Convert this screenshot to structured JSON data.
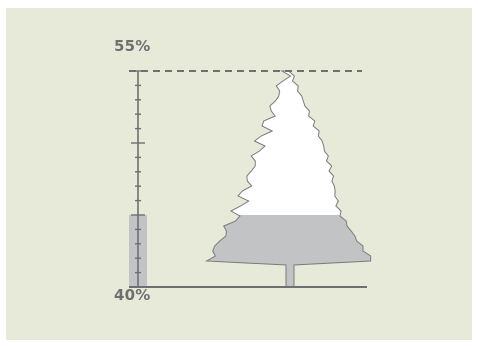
{
  "chart_data": {
    "type": "bar",
    "title": "",
    "xlabel": "",
    "ylabel": "",
    "ylim": [
      40,
      55
    ],
    "y_axis_label_max": "55%",
    "y_axis_label_min": "40%",
    "values": [
      45
    ],
    "reference_line": 55,
    "tree_fill_level": 45,
    "grid": false,
    "legend": "none"
  },
  "colors": {
    "background": "#e8ead9",
    "fill": "#c2c3c5",
    "tree_empty": "#ffffff",
    "axis": "#6f6f70",
    "outline": "#7a7a7c"
  }
}
